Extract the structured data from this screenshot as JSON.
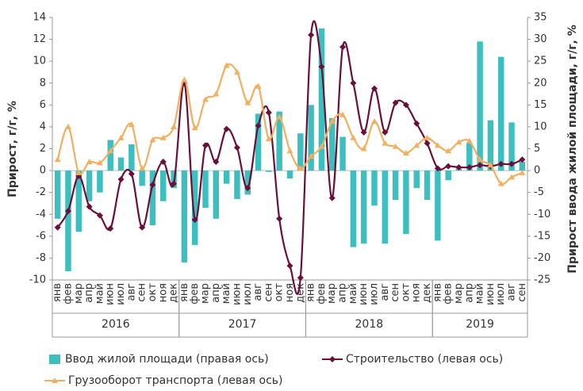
{
  "chart_data": {
    "type": "bar_line",
    "y_label": "Прирост, г/г, %",
    "y2_label": "Прирост ввода жилой площади, г/г, %",
    "categories": [
      "янв",
      "фев",
      "мар",
      "апр",
      "май",
      "июн",
      "июл",
      "авг",
      "сен",
      "окт",
      "ноя",
      "дек",
      "янв",
      "фев",
      "мар",
      "апр",
      "май",
      "июн",
      "июл",
      "авг",
      "сен",
      "окт",
      "ноя",
      "дек",
      "янв",
      "фев",
      "мар",
      "апр",
      "май",
      "июн",
      "июл",
      "авг",
      "сен",
      "окт",
      "ноя",
      "дек",
      "янв",
      "фев",
      "мар",
      "апр",
      "май",
      "июн",
      "июл",
      "авг",
      "сен"
    ],
    "years": [
      "2016",
      "2017",
      "2018",
      "2019"
    ],
    "ylim": [
      -10,
      14
    ],
    "yticks": [
      -10,
      -8,
      -6,
      -4,
      -2,
      0,
      2,
      4,
      6,
      8,
      10,
      12,
      14
    ],
    "y2lim": [
      -25,
      35
    ],
    "y2ticks": [
      -25,
      -20,
      -15,
      -10,
      -5,
      0,
      5,
      10,
      15,
      20,
      25,
      30,
      35
    ],
    "series": [
      {
        "name": "Ввод жилой площади (правая ось)",
        "type": "bar",
        "axis": "y2",
        "color": "#3dbfbf",
        "values": [
          -11,
          -23,
          -14,
          -7,
          -5,
          7,
          3,
          6,
          -3.5,
          -12.5,
          -7,
          -4,
          -21,
          -17,
          -8.5,
          -11,
          -3,
          -6.5,
          -5.5,
          13,
          -0.3,
          13.5,
          -1.8,
          8.5,
          15,
          32.5,
          12,
          7.7,
          -17.5,
          -16.7,
          -8,
          -16.7,
          -6.7,
          -14.5,
          -4,
          -6.7,
          -16,
          -2.2,
          0.5,
          6.3,
          29.5,
          11.5,
          26,
          11,
          2
        ]
      },
      {
        "name": "Строительство (левая ось)",
        "type": "line",
        "marker": "diamond",
        "color": "#6b0f3a",
        "values": [
          -5.2,
          -3.7,
          -0.5,
          -3.3,
          -4.1,
          -5.3,
          -0.8,
          -0.3,
          -5.2,
          -1.3,
          0.8,
          -1.2,
          8.0,
          -4.5,
          2.3,
          0.8,
          3.8,
          2.1,
          -1.6,
          4.1,
          5.3,
          -4.4,
          -8.7,
          -9.8,
          12.4,
          9.5,
          -2.5,
          11.3,
          8.0,
          3.5,
          7.5,
          3.5,
          6.2,
          6.0,
          4.3,
          2.5,
          0.2,
          0.4,
          0.3,
          0.3,
          0.5,
          0.4,
          0.6,
          0.6,
          1.0
        ]
      },
      {
        "name": "Грузооборот транспорта (левая ось)",
        "type": "line",
        "marker": "triangle",
        "color": "#f0b060",
        "values": [
          1.0,
          4.0,
          -0.2,
          0.8,
          0.7,
          1.8,
          3.0,
          4.2,
          0.2,
          2.8,
          3.0,
          4.0,
          8.3,
          3.9,
          6.5,
          7.0,
          9.6,
          9.0,
          6.2,
          7.7,
          2.9,
          4.9,
          1.8,
          0.2,
          1.3,
          2.2,
          4.5,
          5.1,
          3.0,
          2.0,
          4.5,
          2.5,
          2.2,
          1.6,
          2.3,
          3.0,
          2.3,
          1.8,
          2.6,
          2.7,
          1.0,
          0.5,
          -1.2,
          -0.6,
          -0.2
        ]
      }
    ]
  }
}
